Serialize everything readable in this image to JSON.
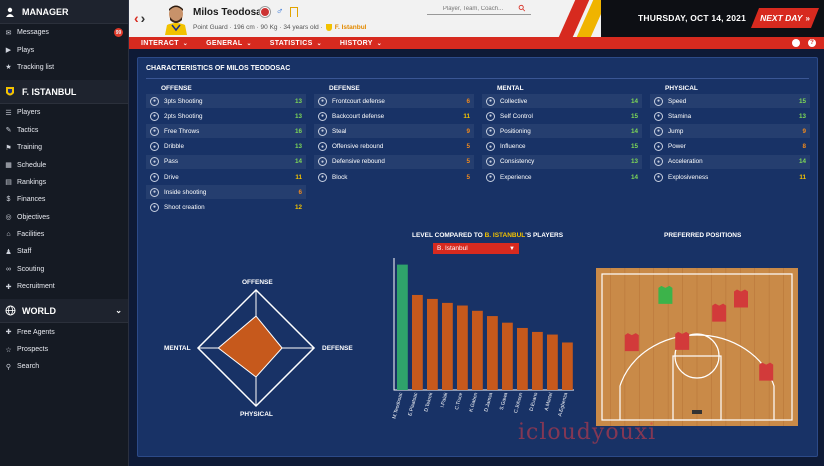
{
  "sidebar": {
    "manager_header": "MANAGER",
    "manager_items": [
      {
        "label": "Messages",
        "icon": "envelope-icon",
        "badge": "99"
      },
      {
        "label": "Plays",
        "icon": "play-icon"
      },
      {
        "label": "Tracking list",
        "icon": "star-icon"
      }
    ],
    "club_header": "F. ISTANBUL",
    "club_items": [
      {
        "label": "Players",
        "icon": "players-icon"
      },
      {
        "label": "Tactics",
        "icon": "tactics-icon"
      },
      {
        "label": "Training",
        "icon": "training-icon"
      },
      {
        "label": "Schedule",
        "icon": "calendar-icon"
      },
      {
        "label": "Rankings",
        "icon": "rankings-icon"
      },
      {
        "label": "Finances",
        "icon": "finances-icon"
      },
      {
        "label": "Objectives",
        "icon": "objectives-icon"
      },
      {
        "label": "Facilities",
        "icon": "facilities-icon"
      },
      {
        "label": "Staff",
        "icon": "staff-icon"
      },
      {
        "label": "Scouting",
        "icon": "binoculars-icon"
      },
      {
        "label": "Recruitment",
        "icon": "recruitment-icon"
      }
    ],
    "world_header": "WORLD",
    "world_items": [
      {
        "label": "Free Agents",
        "icon": "free-agents-icon"
      },
      {
        "label": "Prospects",
        "icon": "prospects-icon"
      },
      {
        "label": "Search",
        "icon": "search-icon"
      }
    ]
  },
  "header": {
    "player_name": "Milos Teodosac",
    "player_details": "Point Guard · 196 cm · 90 Kg · 34 years old ·",
    "club": "F. Istanbul",
    "search_placeholder": "Player, Team, Coach...",
    "date": "THURSDAY, OCT 14, 2021",
    "next_day": "NEXT DAY"
  },
  "nav": {
    "tabs": [
      "INTERACT",
      "GENERAL",
      "STATISTICS",
      "HISTORY"
    ]
  },
  "characteristics": {
    "title": "CHARACTERISTICS OF MILOS TEODOSAC",
    "columns": [
      {
        "header": "OFFENSE",
        "items": [
          {
            "label": "3pts Shooting",
            "value": "13",
            "color": "green"
          },
          {
            "label": "2pts Shooting",
            "value": "13",
            "color": "green"
          },
          {
            "label": "Free Throws",
            "value": "16",
            "color": "green"
          },
          {
            "label": "Dribble",
            "value": "13",
            "color": "green"
          },
          {
            "label": "Pass",
            "value": "14",
            "color": "green"
          },
          {
            "label": "Drive",
            "value": "11",
            "color": "yellow"
          },
          {
            "label": "Inside shooting",
            "value": "6",
            "color": "orange"
          },
          {
            "label": "Shoot creation",
            "value": "12",
            "color": "yellow"
          }
        ]
      },
      {
        "header": "DEFENSE",
        "items": [
          {
            "label": "Frontcourt defense",
            "value": "6",
            "color": "orange"
          },
          {
            "label": "Backcourt defense",
            "value": "11",
            "color": "yellow"
          },
          {
            "label": "Steal",
            "value": "9",
            "color": "orange"
          },
          {
            "label": "Offensive rebound",
            "value": "5",
            "color": "orange"
          },
          {
            "label": "Defensive rebound",
            "value": "5",
            "color": "orange"
          },
          {
            "label": "Block",
            "value": "5",
            "color": "orange"
          }
        ]
      },
      {
        "header": "MENTAL",
        "items": [
          {
            "label": "Collective",
            "value": "14",
            "color": "green"
          },
          {
            "label": "Self Control",
            "value": "15",
            "color": "green"
          },
          {
            "label": "Positioning",
            "value": "14",
            "color": "green"
          },
          {
            "label": "Influence",
            "value": "15",
            "color": "green"
          },
          {
            "label": "Consistency",
            "value": "13",
            "color": "green"
          },
          {
            "label": "Experience",
            "value": "14",
            "color": "green"
          }
        ]
      },
      {
        "header": "PHYSICAL",
        "items": [
          {
            "label": "Speed",
            "value": "15",
            "color": "green"
          },
          {
            "label": "Stamina",
            "value": "13",
            "color": "green"
          },
          {
            "label": "Jump",
            "value": "9",
            "color": "orange"
          },
          {
            "label": "Power",
            "value": "8",
            "color": "orange"
          },
          {
            "label": "Acceleration",
            "value": "14",
            "color": "green"
          },
          {
            "label": "Explosiveness",
            "value": "11",
            "color": "yellow"
          }
        ]
      }
    ]
  },
  "radar": {
    "labels": {
      "top": "OFFENSE",
      "right": "DEFENSE",
      "bottom": "PHYSICAL",
      "left": "MENTAL"
    },
    "values": {
      "offense": 0.55,
      "defense": 0.45,
      "physical": 0.5,
      "mental": 0.65
    }
  },
  "comparison": {
    "title_prefix": "LEVEL COMPARED TO ",
    "title_team": "B. ISTANBUL",
    "title_suffix": "'S PLAYERS",
    "selected_team": "B. Istanbul"
  },
  "chart_data": {
    "type": "bar",
    "categories": [
      "M.Teodosac",
      "E.Plaatsac",
      "D.Tekrek",
      "I.Palak",
      "C.Truce",
      "K.Gaben",
      "D.Jamsa",
      "S.Gawa",
      "C.Johson",
      "D.Evans",
      "A.Martel",
      "A.Egbenza"
    ],
    "values": [
      0.95,
      0.72,
      0.69,
      0.66,
      0.64,
      0.6,
      0.56,
      0.51,
      0.47,
      0.44,
      0.42,
      0.36
    ],
    "highlight_index": 0,
    "colors": {
      "highlight": "#2fa36b",
      "other": "#c6591c"
    }
  },
  "positions": {
    "title": "PREFERRED POSITIONS",
    "court_color": "#c98a48",
    "preferred": [
      0.3,
      0.05
    ],
    "others": [
      [
        0.62,
        0.2
      ],
      [
        0.1,
        0.45
      ],
      [
        0.4,
        0.44
      ],
      [
        0.75,
        0.08
      ],
      [
        0.9,
        0.7
      ]
    ]
  }
}
